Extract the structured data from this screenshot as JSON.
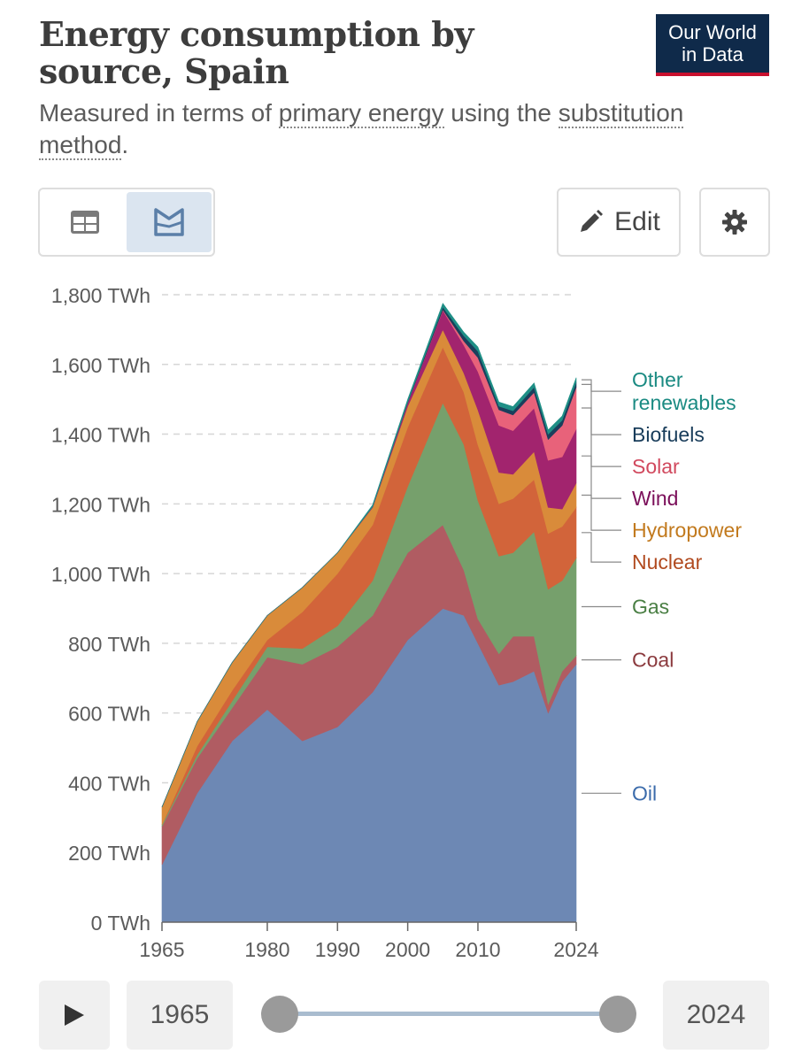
{
  "header": {
    "title": "Energy consumption by source, Spain",
    "subtitle_pre": "Measured in terms of ",
    "subtitle_link1": "primary energy",
    "subtitle_mid": " using the ",
    "subtitle_link2": "substitution method",
    "subtitle_post": ".",
    "logo_line1": "Our World",
    "logo_line2": "in Data"
  },
  "controls": {
    "table_icon": "table-icon",
    "chart_icon": "chart-icon",
    "edit_label": "Edit",
    "edit_icon": "pencil-icon",
    "settings_icon": "gear-icon",
    "play_icon": "play-icon",
    "start_year": "1965",
    "end_year": "2024"
  },
  "colors": {
    "Oil": "#6d88b4",
    "Coal": "#b05c62",
    "Gas": "#76a06c",
    "Nuclear": "#d2643a",
    "Hydropower": "#d98b3a",
    "Wind": "#a2246e",
    "Solar": "#e8627a",
    "Biofuels": "#1a3f5c",
    "Other renewables": "#1f8f86"
  },
  "chart_data": {
    "type": "area",
    "stacked": true,
    "title": "Energy consumption by source, Spain",
    "unit": "TWh",
    "ylim": [
      0,
      1800
    ],
    "yticks": [
      "0 TWh",
      "200 TWh",
      "400 TWh",
      "600 TWh",
      "800 TWh",
      "1,000 TWh",
      "1,200 TWh",
      "1,400 TWh",
      "1,600 TWh",
      "1,800 TWh"
    ],
    "xticks": [
      "1965",
      "1980",
      "1990",
      "2000",
      "2010",
      "2024"
    ],
    "x": [
      1965,
      1970,
      1975,
      1980,
      1985,
      1990,
      1995,
      2000,
      2005,
      2008,
      2010,
      2013,
      2015,
      2018,
      2020,
      2022,
      2024
    ],
    "series": [
      {
        "name": "Oil",
        "label_color": "#3b6bab",
        "values": [
          165,
          370,
          520,
          610,
          520,
          560,
          660,
          810,
          900,
          880,
          800,
          680,
          690,
          720,
          600,
          690,
          740
        ]
      },
      {
        "name": "Coal",
        "label_color": "#8b3a3e",
        "values": [
          110,
          100,
          95,
          150,
          220,
          230,
          220,
          250,
          240,
          130,
          70,
          90,
          130,
          100,
          25,
          30,
          25
        ]
      },
      {
        "name": "Gas",
        "label_color": "#4a7f44",
        "values": [
          5,
          10,
          20,
          30,
          45,
          60,
          100,
          190,
          350,
          360,
          340,
          280,
          240,
          300,
          330,
          260,
          280
        ]
      },
      {
        "name": "Nuclear",
        "label_color": "#b14a1f",
        "values": [
          0,
          25,
          30,
          20,
          105,
          150,
          160,
          170,
          160,
          150,
          160,
          150,
          155,
          150,
          160,
          155,
          145
        ]
      },
      {
        "name": "Hydropower",
        "label_color": "#c27a1e",
        "values": [
          50,
          70,
          80,
          70,
          70,
          60,
          50,
          60,
          50,
          55,
          100,
          90,
          70,
          80,
          75,
          50,
          70
        ]
      },
      {
        "name": "Wind",
        "label_color": "#7b0f5a",
        "values": [
          0,
          0,
          0,
          0,
          0,
          0,
          2,
          10,
          55,
          80,
          110,
          135,
          125,
          125,
          135,
          150,
          155
        ]
      },
      {
        "name": "Solar",
        "label_color": "#d1495e",
        "values": [
          0,
          0,
          0,
          0,
          0,
          0,
          0,
          0,
          2,
          12,
          40,
          45,
          45,
          45,
          60,
          90,
          120
        ]
      },
      {
        "name": "Biofuels",
        "label_color": "#183c5a",
        "values": [
          0,
          0,
          0,
          0,
          0,
          0,
          0,
          2,
          8,
          15,
          18,
          10,
          12,
          15,
          15,
          15,
          15
        ]
      },
      {
        "name": "Other renewables",
        "label_color": "#1a8a82",
        "values": [
          0,
          0,
          0,
          0,
          0,
          0,
          5,
          8,
          10,
          10,
          12,
          12,
          12,
          12,
          12,
          12,
          12
        ]
      }
    ]
  }
}
